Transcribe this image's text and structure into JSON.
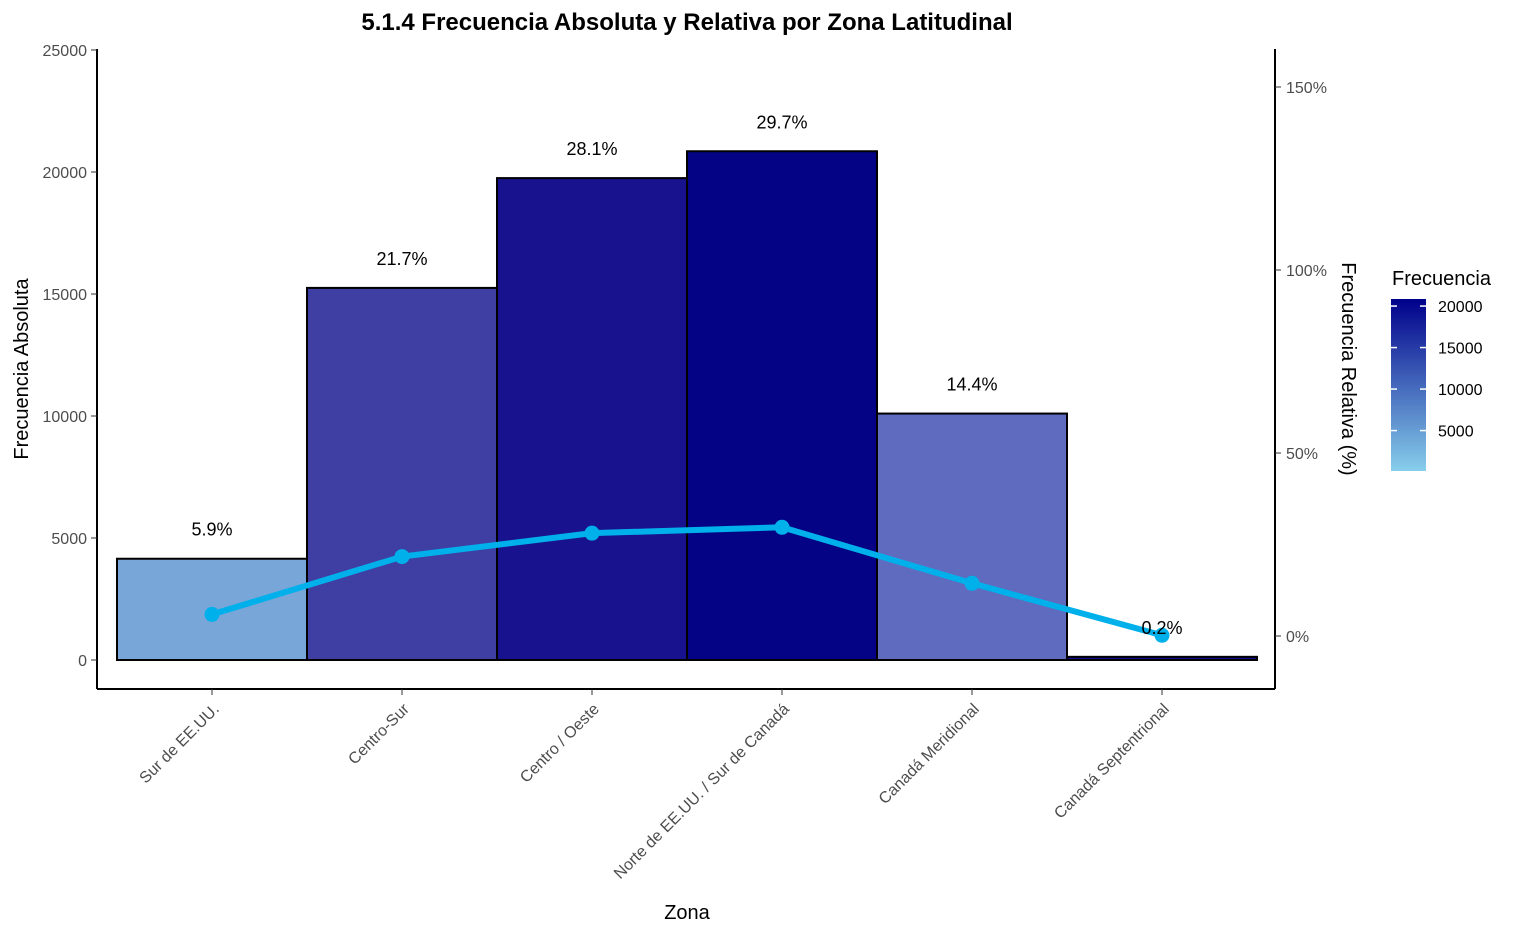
{
  "chart_data": {
    "type": "bar",
    "title": "5.1.4 Frecuencia Absoluta y Relativa por Zona Latitudinal",
    "xlabel": "Zona",
    "ylabel": "Frecuencia Absoluta",
    "y2label": "Frecuencia Relativa (%)",
    "categories": [
      "Sur de EE.UU.",
      "Centro-Sur",
      "Centro / Oeste",
      "Norte de EE.UU. / Sur de Canadá",
      "Canadá Meridional",
      "Canadá Septentrional"
    ],
    "values": [
      4150,
      15250,
      19750,
      20850,
      10100,
      130
    ],
    "relative_values": [
      5.9,
      21.7,
      28.1,
      29.7,
      14.4,
      0.2
    ],
    "relative_labels": [
      "5.9%",
      "21.7%",
      "28.1%",
      "29.7%",
      "14.4%",
      "0.2%"
    ],
    "bar_colors": [
      "#79a6d9",
      "#3f3fa3",
      "#19128e",
      "#040386",
      "#5e6bbf",
      "#0b0a88"
    ],
    "line_color": "#00b0eb",
    "ylim": [
      0,
      25000
    ],
    "yticks": [
      "0",
      "5000",
      "10000",
      "15000",
      "20000",
      "25000"
    ],
    "y2lim": [
      0,
      150
    ],
    "y2ticks": [
      "0%",
      "50%",
      "100%",
      "150%"
    ],
    "legend": {
      "title": "Frecuencia",
      "position": "right",
      "ticks": [
        "5000",
        "10000",
        "15000",
        "20000"
      ],
      "color_low": "#87ceeb",
      "color_high": "#00008b"
    },
    "grid": false
  }
}
